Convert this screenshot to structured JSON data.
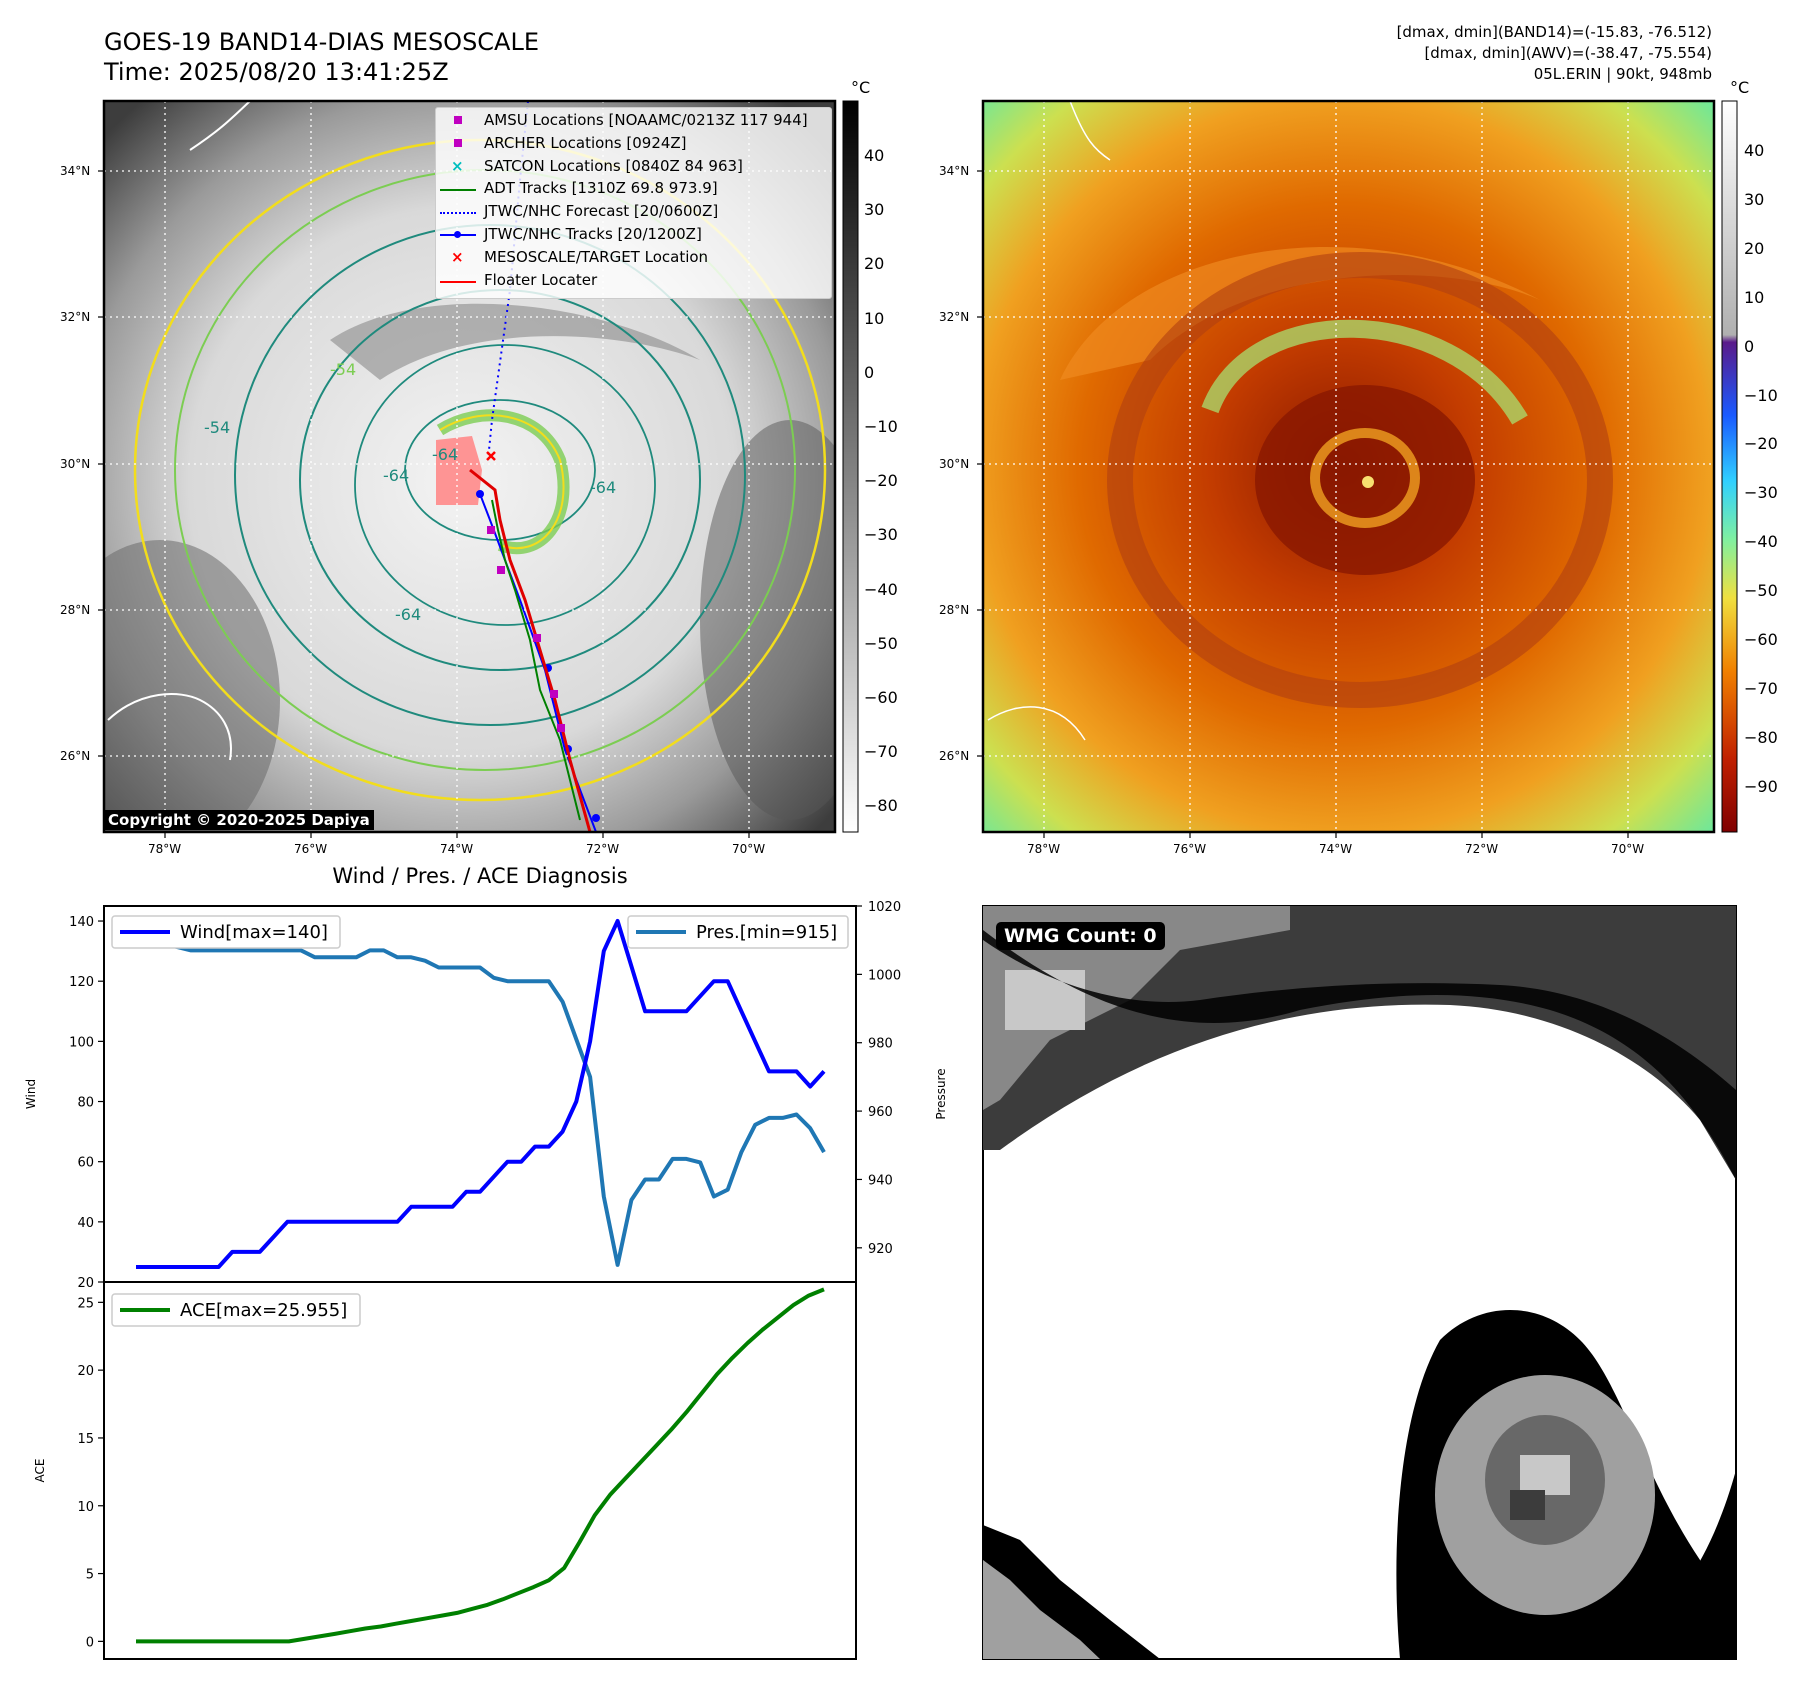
{
  "header": {
    "title_line1": "GOES-19 BAND14-DIAS MESOSCALE",
    "title_line2": "Time: 2025/08/20 13:41:25Z",
    "info_line1": "[dmax, dmin](BAND14)=(-15.83, -76.512)",
    "info_line2": "[dmax, dmin](AWV)=(-38.47, -75.554)",
    "info_line3": "05L.ERIN | 90kt, 948mb"
  },
  "maps": {
    "lat_labels": [
      "34°N",
      "32°N",
      "30°N",
      "28°N",
      "26°N"
    ],
    "lon_labels": [
      "78°W",
      "76°W",
      "74°W",
      "72°W",
      "70°W"
    ],
    "contour_labels": [
      "-54",
      "-64",
      "-64",
      "-64",
      "-64",
      "-54"
    ],
    "copyright": "Copyright © 2020-2025 Dapiya",
    "colorbar_unit": "°C",
    "colors": {
      "cold_cloud": "#ffffff",
      "warm_sea": "#000000",
      "contour_yellow": "#f2dd1c",
      "contour_green": "#7ccd52",
      "contour_teal": "#1f8a7d",
      "track_red": "#e00000",
      "track_blue": "#0000ff",
      "adt_green": "#008000",
      "amsu_magenta": "#c000c0",
      "satcon_cyan": "#00bfbf"
    }
  },
  "legend_map": [
    {
      "label": "AMSU Locations [NOAAMC/0213Z 117 944]",
      "marker": "square",
      "color": "#c000c0"
    },
    {
      "label": "ARCHER Locations [0924Z]",
      "marker": "square",
      "color": "#c000c0"
    },
    {
      "label": "SATCON Locations [0840Z 84 963]",
      "marker": "x",
      "color": "#00bfbf"
    },
    {
      "label": "ADT Tracks [1310Z 69.8 973.9]",
      "marker": "line",
      "color": "#008000"
    },
    {
      "label": "JTWC/NHC Forecast [20/0600Z]",
      "marker": "dotted",
      "color": "#0000ff"
    },
    {
      "label": "JTWC/NHC Tracks [20/1200Z]",
      "marker": "line-dot",
      "color": "#0000ff"
    },
    {
      "label": "MESOSCALE/TARGET Location",
      "marker": "x",
      "color": "#ff0000"
    },
    {
      "label": "Floater Locater",
      "marker": "line",
      "color": "#ff0000"
    }
  ],
  "colorbar_ir": {
    "ticks": [
      "40",
      "30",
      "20",
      "10",
      "0",
      "−10",
      "−20",
      "−30",
      "−40",
      "−50",
      "−60",
      "−70",
      "−80"
    ]
  },
  "colorbar_wv": {
    "ticks": [
      "40",
      "30",
      "20",
      "10",
      "0",
      "−10",
      "−20",
      "−30",
      "−40",
      "−50",
      "−60",
      "−70",
      "−80",
      "−90"
    ]
  },
  "wmg": {
    "label": "WMG Count: 0"
  },
  "chart_data": [
    {
      "type": "line",
      "title": "Wind / Pres. / ACE Diagnosis",
      "ylabel": "Wind",
      "ylabel_right": "Pressure",
      "ylim": [
        20,
        145
      ],
      "ylim_right": [
        910,
        1020
      ],
      "yticks": [
        "140",
        "120",
        "100",
        "80",
        "60",
        "40",
        "20"
      ],
      "yticks_right": [
        "1020",
        "1000",
        "980",
        "960",
        "940",
        "920"
      ],
      "series": [
        {
          "name": "Wind[max=140]",
          "axis": "left",
          "color": "#0000ff",
          "values": [
            25,
            25,
            25,
            25,
            25,
            25,
            25,
            30,
            30,
            30,
            35,
            40,
            40,
            40,
            40,
            40,
            40,
            40,
            40,
            40,
            45,
            45,
            45,
            45,
            50,
            50,
            55,
            60,
            60,
            65,
            65,
            70,
            80,
            100,
            130,
            140,
            125,
            110,
            110,
            110,
            110,
            115,
            120,
            120,
            110,
            100,
            90,
            90,
            90,
            85,
            90
          ]
        },
        {
          "name": "Pres.[min=915]",
          "axis": "right",
          "color": "#1f77b4",
          "values": [
            1015,
            1015,
            1009,
            1008,
            1007,
            1007,
            1007,
            1007,
            1007,
            1007,
            1007,
            1007,
            1007,
            1005,
            1005,
            1005,
            1005,
            1007,
            1007,
            1005,
            1005,
            1004,
            1002,
            1002,
            1002,
            1002,
            999,
            998,
            998,
            998,
            998,
            992,
            981,
            970,
            935,
            915,
            934,
            940,
            940,
            946,
            946,
            945,
            935,
            937,
            948,
            956,
            958,
            958,
            959,
            955,
            948
          ]
        }
      ]
    },
    {
      "type": "line",
      "ylabel": "ACE",
      "ylim": [
        -1.3,
        26.5
      ],
      "yticks": [
        "25",
        "20",
        "15",
        "10",
        "5",
        "0"
      ],
      "series": [
        {
          "name": "ACE[max=25.955]",
          "color": "#008000",
          "values": [
            0,
            0,
            0,
            0,
            0,
            0,
            0,
            0,
            0,
            0,
            0,
            0.18,
            0.37,
            0.55,
            0.75,
            0.95,
            1.1,
            1.3,
            1.5,
            1.7,
            1.9,
            2.1,
            2.4,
            2.7,
            3.1,
            3.55,
            4.0,
            4.5,
            5.4,
            7.3,
            9.3,
            10.8,
            12.0,
            13.2,
            14.4,
            15.6,
            16.9,
            18.3,
            19.7,
            20.9,
            22.0,
            23.0,
            23.9,
            24.8,
            25.5,
            25.955
          ]
        }
      ]
    }
  ]
}
